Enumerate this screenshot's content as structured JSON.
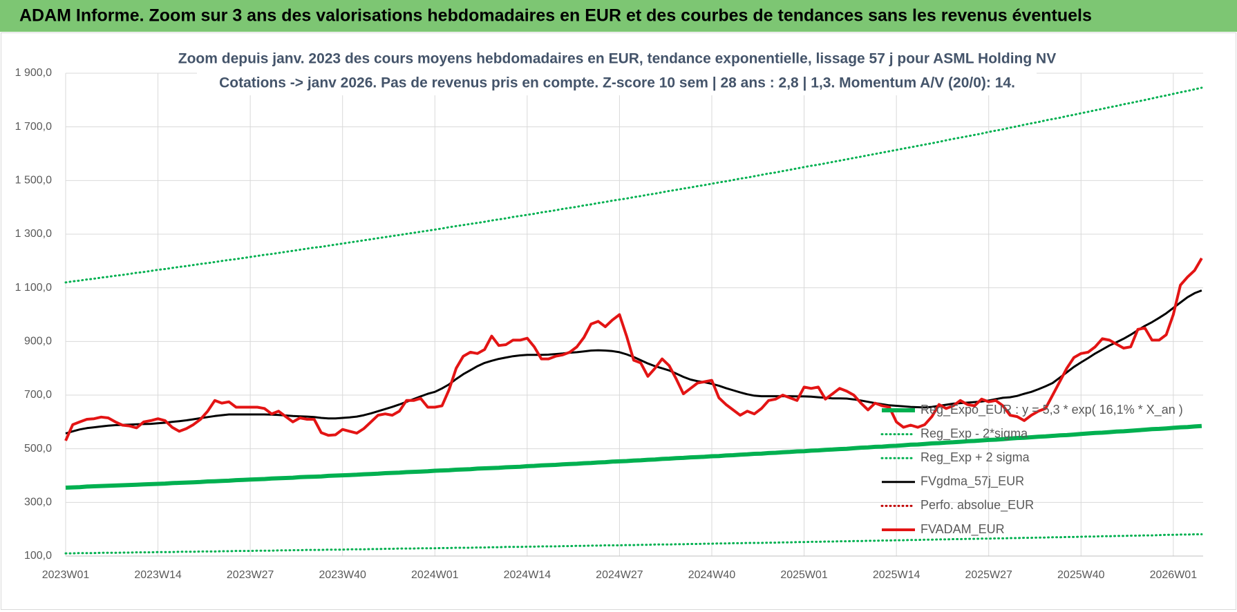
{
  "chart_data": {
    "type": "line",
    "header": "ADAM Informe. Zoom sur 3 ans des valorisations hebdomadaires en EUR et des courbes de tendances sans les revenus éventuels",
    "title": "Zoom depuis janv. 2023 des cours moyens hebdomadaires en EUR, tendance exponentielle, lissage 57 j pour ASML Holding NV",
    "subtitle": "Cotations -> janv 2026. Pas de revenus pris en compte. Z-score 10 sem | 28 ans : 2,8 | 1,3. Momentum A/V (20/0): 14.",
    "categories": [
      "2023W01",
      null,
      null,
      null,
      null,
      null,
      null,
      null,
      null,
      null,
      null,
      null,
      null,
      "2023W14",
      null,
      null,
      null,
      null,
      null,
      null,
      null,
      null,
      null,
      null,
      null,
      null,
      "2023W27",
      null,
      null,
      null,
      null,
      null,
      null,
      null,
      null,
      null,
      null,
      null,
      null,
      "2023W40",
      null,
      null,
      null,
      null,
      null,
      null,
      null,
      null,
      null,
      null,
      null,
      null,
      "2024W01",
      null,
      null,
      null,
      null,
      null,
      null,
      null,
      null,
      null,
      null,
      null,
      null,
      "2024W14",
      null,
      null,
      null,
      null,
      null,
      null,
      null,
      null,
      null,
      null,
      null,
      null,
      "2024W27",
      null,
      null,
      null,
      null,
      null,
      null,
      null,
      null,
      null,
      null,
      null,
      null,
      "2024W40",
      null,
      null,
      null,
      null,
      null,
      null,
      null,
      null,
      null,
      null,
      null,
      null,
      "2025W01",
      null,
      null,
      null,
      null,
      null,
      null,
      null,
      null,
      null,
      null,
      null,
      null,
      "2025W14",
      null,
      null,
      null,
      null,
      null,
      null,
      null,
      null,
      null,
      null,
      null,
      null,
      "2025W27",
      null,
      null,
      null,
      null,
      null,
      null,
      null,
      null,
      null,
      null,
      null,
      null,
      "2025W40",
      null,
      null,
      null,
      null,
      null,
      null,
      null,
      null,
      null,
      null,
      null,
      null,
      "2026W01",
      null,
      null,
      null,
      null
    ],
    "ylim": [
      100,
      1900
    ],
    "yticks": [
      {
        "value": 100,
        "label": "100,0"
      },
      {
        "value": 300,
        "label": "300,0"
      },
      {
        "value": 500,
        "label": "500,0"
      },
      {
        "value": 700,
        "label": "700,0"
      },
      {
        "value": 900,
        "label": "900,0"
      },
      {
        "value": 1100,
        "label": "1 100,0"
      },
      {
        "value": 1300,
        "label": "1 300,0"
      },
      {
        "value": 1500,
        "label": "1 500,0"
      },
      {
        "value": 1700,
        "label": "1 700,0"
      },
      {
        "value": 1900,
        "label": "1 900,0"
      }
    ],
    "grid": true,
    "legend": "lower right",
    "series": [
      {
        "name": "Reg_Expo_EUR : y = 5,3 * exp( 16,1% * X_an )",
        "color": "#00b050",
        "style": "solid",
        "width": 6,
        "values": [
          355,
          356,
          357,
          359,
          360,
          361,
          362,
          363,
          364,
          365,
          366,
          367,
          368,
          369,
          370,
          372,
          373,
          374,
          375,
          376,
          378,
          379,
          380,
          381,
          383,
          384,
          385,
          386,
          387,
          389,
          390,
          391,
          392,
          394,
          395,
          396,
          397,
          399,
          400,
          401,
          402,
          403,
          405,
          406,
          407,
          409,
          410,
          411,
          413,
          414,
          415,
          416,
          418,
          419,
          420,
          422,
          423,
          424,
          426,
          427,
          428,
          429,
          431,
          432,
          433,
          435,
          436,
          438,
          439,
          440,
          442,
          443,
          444,
          446,
          447,
          449,
          450,
          452,
          453,
          454,
          456,
          457,
          459,
          460,
          462,
          463,
          465,
          466,
          468,
          469,
          470,
          472,
          473,
          475,
          476,
          478,
          479,
          481,
          482,
          484,
          485,
          487,
          488,
          490,
          491,
          493,
          494,
          496,
          497,
          499,
          500,
          502,
          504,
          505,
          507,
          508,
          510,
          511,
          513,
          515,
          516,
          518,
          520,
          521,
          523,
          524,
          526,
          528,
          529,
          531,
          533,
          534,
          536,
          538,
          540,
          541,
          543,
          545,
          546,
          548,
          550,
          551,
          553,
          555,
          557,
          559,
          560,
          562,
          564,
          565,
          567,
          569,
          571,
          573,
          574,
          576,
          578,
          580,
          581,
          583,
          585
        ]
      },
      {
        "name": "Reg_Exp - 2*sigma",
        "color": "#00b050",
        "style": "dotted",
        "width": 3,
        "values": [
          110,
          110,
          111,
          111,
          111,
          112,
          112,
          112,
          113,
          113,
          114,
          114,
          114,
          115,
          115,
          115,
          116,
          116,
          116,
          117,
          117,
          117,
          118,
          118,
          119,
          119,
          119,
          120,
          120,
          120,
          121,
          121,
          122,
          122,
          123,
          123,
          123,
          124,
          124,
          124,
          125,
          125,
          125,
          126,
          126,
          127,
          127,
          128,
          128,
          128,
          129,
          129,
          129,
          130,
          130,
          131,
          131,
          131,
          132,
          132,
          133,
          133,
          134,
          134,
          134,
          135,
          135,
          136,
          136,
          136,
          137,
          137,
          138,
          138,
          139,
          139,
          140,
          140,
          140,
          141,
          141,
          142,
          142,
          143,
          143,
          143,
          144,
          144,
          145,
          145,
          146,
          146,
          147,
          147,
          148,
          148,
          149,
          149,
          149,
          150,
          150,
          151,
          151,
          152,
          152,
          153,
          153,
          154,
          154,
          155,
          155,
          156,
          156,
          157,
          157,
          158,
          158,
          159,
          159,
          160,
          160,
          161,
          161,
          162,
          162,
          163,
          163,
          164,
          164,
          165,
          165,
          166,
          166,
          167,
          167,
          168,
          168,
          169,
          169,
          170,
          170,
          171,
          171,
          172,
          173,
          173,
          174,
          174,
          175,
          175,
          176,
          176,
          177,
          177,
          178,
          179,
          179,
          180,
          180,
          181,
          181
        ]
      },
      {
        "name": "Reg_Exp + 2 sigma",
        "color": "#00b050",
        "style": "dotted",
        "width": 3,
        "values": [
          1120,
          1124,
          1127,
          1131,
          1134,
          1138,
          1141,
          1145,
          1148,
          1152,
          1156,
          1159,
          1163,
          1167,
          1170,
          1174,
          1178,
          1181,
          1185,
          1189,
          1192,
          1196,
          1200,
          1204,
          1207,
          1211,
          1215,
          1219,
          1223,
          1226,
          1230,
          1234,
          1238,
          1242,
          1246,
          1250,
          1253,
          1257,
          1261,
          1265,
          1269,
          1273,
          1277,
          1281,
          1285,
          1289,
          1293,
          1297,
          1301,
          1305,
          1309,
          1313,
          1317,
          1321,
          1326,
          1330,
          1334,
          1338,
          1342,
          1346,
          1351,
          1355,
          1359,
          1364,
          1368,
          1372,
          1376,
          1381,
          1385,
          1389,
          1394,
          1398,
          1402,
          1407,
          1411,
          1416,
          1420,
          1425,
          1429,
          1433,
          1438,
          1442,
          1447,
          1451,
          1456,
          1461,
          1465,
          1470,
          1474,
          1479,
          1483,
          1488,
          1493,
          1497,
          1502,
          1507,
          1511,
          1516,
          1521,
          1526,
          1530,
          1535,
          1540,
          1545,
          1550,
          1555,
          1559,
          1564,
          1569,
          1574,
          1579,
          1584,
          1589,
          1594,
          1599,
          1604,
          1609,
          1614,
          1619,
          1624,
          1629,
          1634,
          1639,
          1644,
          1650,
          1655,
          1660,
          1665,
          1670,
          1675,
          1681,
          1686,
          1691,
          1697,
          1702,
          1708,
          1713,
          1718,
          1724,
          1729,
          1734,
          1740,
          1745,
          1751,
          1756,
          1762,
          1767,
          1773,
          1778,
          1784,
          1789,
          1795,
          1800,
          1806,
          1812,
          1817,
          1823,
          1829,
          1834,
          1840,
          1846
        ]
      },
      {
        "name": "FVgdma_57j_EUR",
        "color": "#000000",
        "style": "solid",
        "width": 3,
        "values": [
          557,
          565,
          572,
          577,
          580,
          583,
          586,
          588,
          589,
          590,
          591,
          592,
          593,
          595,
          597,
          600,
          603,
          606,
          610,
          614,
          618,
          622,
          625,
          628,
          628,
          628,
          628,
          628,
          628,
          627,
          626,
          624,
          622,
          621,
          620,
          618,
          615,
          613,
          613,
          615,
          617,
          620,
          625,
          632,
          640,
          648,
          656,
          665,
          675,
          685,
          695,
          705,
          712,
          725,
          740,
          760,
          778,
          793,
          808,
          820,
          828,
          835,
          840,
          845,
          848,
          850,
          850,
          850,
          851,
          853,
          855,
          858,
          860,
          863,
          866,
          867,
          866,
          864,
          860,
          852,
          842,
          830,
          818,
          808,
          800,
          792,
          780,
          768,
          758,
          752,
          748,
          742,
          735,
          726,
          718,
          710,
          703,
          698,
          696,
          696,
          696,
          696,
          696,
          695,
          695,
          694,
          692,
          690,
          688,
          688,
          687,
          684,
          680,
          675,
          670,
          666,
          662,
          660,
          658,
          656,
          655,
          654,
          656,
          660,
          664,
          668,
          670,
          672,
          674,
          676,
          680,
          685,
          690,
          692,
          697,
          705,
          712,
          722,
          733,
          745,
          765,
          785,
          805,
          822,
          838,
          855,
          870,
          885,
          897,
          910,
          925,
          942,
          958,
          972,
          988,
          1005,
          1025,
          1045,
          1065,
          1080,
          1090
        ]
      },
      {
        "name": "Perfo. absolue_EUR",
        "color": "#c00000",
        "style": "dotted",
        "width": 3,
        "values": [
          null,
          null,
          null,
          null,
          null,
          null,
          null,
          null,
          null,
          null,
          null,
          null,
          null,
          null,
          null,
          null,
          null,
          null,
          null,
          null,
          null,
          null,
          null,
          null,
          null,
          null,
          null,
          null,
          null,
          null,
          null,
          null,
          null,
          null,
          null,
          null,
          null,
          null,
          null,
          null,
          null,
          null,
          null,
          null,
          null,
          null,
          null,
          null,
          null,
          null,
          null,
          null,
          null,
          null,
          null,
          null,
          null,
          null,
          null,
          null,
          null,
          null,
          null,
          null,
          null,
          null,
          null,
          null,
          null,
          null,
          null,
          null,
          null,
          null,
          null,
          null,
          null,
          null,
          null,
          null,
          null,
          null,
          null,
          null,
          null,
          null,
          null,
          null,
          null,
          null,
          null,
          null,
          null,
          null,
          null,
          null,
          null,
          null,
          null,
          null,
          null,
          null,
          null,
          null,
          null,
          null,
          null,
          null,
          null,
          null,
          null,
          null,
          null,
          null,
          null,
          null,
          null,
          null,
          null,
          null,
          null,
          null,
          null,
          null,
          null,
          null,
          null,
          null,
          null,
          null,
          null,
          null,
          null,
          null,
          null,
          null,
          null,
          null,
          null,
          null,
          null,
          null,
          null,
          null,
          null,
          null,
          null,
          null,
          null,
          null,
          null,
          null,
          null,
          null,
          null,
          null,
          null,
          null,
          null,
          null,
          null
        ]
      },
      {
        "name": "FVADAM_EUR",
        "color": "#e31414",
        "style": "solid",
        "width": 4,
        "values": [
          530,
          590,
          600,
          610,
          612,
          618,
          615,
          600,
          588,
          585,
          578,
          600,
          605,
          612,
          605,
          580,
          565,
          575,
          590,
          610,
          640,
          680,
          670,
          675,
          655,
          655,
          655,
          655,
          650,
          630,
          640,
          620,
          600,
          615,
          610,
          610,
          560,
          550,
          552,
          572,
          565,
          558,
          575,
          600,
          625,
          630,
          625,
          640,
          680,
          680,
          688,
          655,
          655,
          660,
          720,
          800,
          845,
          860,
          855,
          870,
          920,
          885,
          888,
          905,
          905,
          912,
          880,
          835,
          835,
          845,
          850,
          860,
          880,
          915,
          965,
          975,
          955,
          980,
          1000,
          920,
          830,
          820,
          770,
          800,
          835,
          810,
          760,
          705,
          725,
          745,
          750,
          755,
          690,
          665,
          645,
          625,
          640,
          630,
          650,
          680,
          685,
          700,
          690,
          680,
          730,
          725,
          730,
          685,
          705,
          725,
          715,
          700,
          670,
          645,
          670,
          660,
          655,
          600,
          580,
          588,
          580,
          590,
          620,
          665,
          650,
          660,
          680,
          665,
          660,
          685,
          675,
          680,
          660,
          625,
          620,
          605,
          625,
          640,
          650,
          700,
          750,
          800,
          840,
          855,
          860,
          880,
          910,
          905,
          890,
          875,
          880,
          945,
          950,
          905,
          905,
          925,
          1000,
          1110,
          1140,
          1165,
          1210
        ]
      }
    ]
  }
}
